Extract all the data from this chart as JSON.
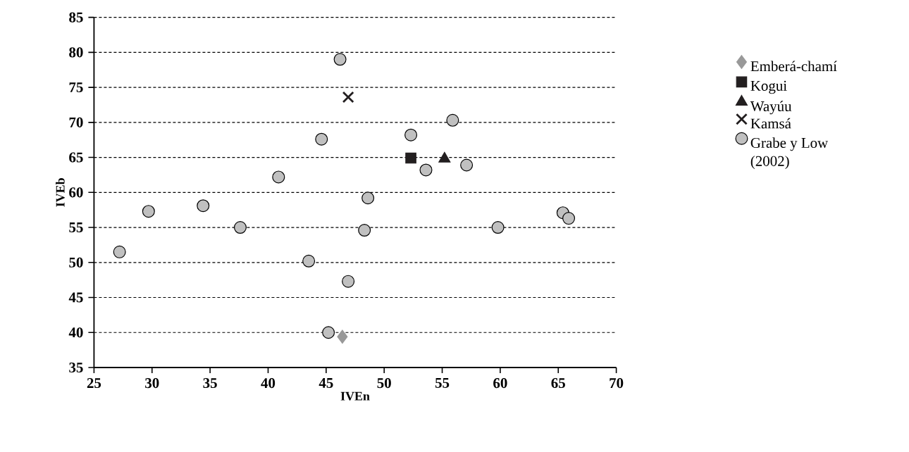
{
  "chart_data": {
    "type": "scatter",
    "xlabel": "IVEn",
    "ylabel": "IVEb",
    "xlim": [
      25,
      70
    ],
    "xticks": [
      25,
      30,
      35,
      40,
      45,
      50,
      55,
      60,
      65,
      70
    ],
    "ylim": [
      35,
      85
    ],
    "yticks": [
      35,
      40,
      45,
      50,
      55,
      60,
      65,
      70,
      75,
      80,
      85
    ],
    "grid": "y",
    "legend": "right",
    "series": [
      {
        "name": "Emberá-chamí",
        "color": "#999999",
        "marker": "diamond",
        "x": [
          46.4
        ],
        "values": [
          39.4
        ]
      },
      {
        "name": "Kogui",
        "color": "#231f20",
        "marker": "square",
        "x": [
          52.3
        ],
        "values": [
          64.9
        ]
      },
      {
        "name": "Wayúu",
        "color": "#231f20",
        "marker": "triangle",
        "x": [
          55.2
        ],
        "values": [
          64.8
        ]
      },
      {
        "name": "Kamsá",
        "color": "#231f20",
        "marker": "cross",
        "x": [
          46.9
        ],
        "values": [
          73.6
        ]
      },
      {
        "name": "Grabe y Low (2002)",
        "color": "#c0c0c0",
        "marker": "circle",
        "x": [
          27.2,
          29.7,
          34.4,
          37.6,
          40.9,
          43.5,
          44.6,
          46.2,
          45.2,
          46.9,
          48.6,
          48.3,
          52.3,
          53.6,
          55.9,
          57.1,
          59.8,
          65.4,
          65.9
        ],
        "values": [
          51.5,
          57.3,
          58.1,
          55.0,
          62.2,
          50.2,
          67.6,
          79.0,
          40.0,
          47.3,
          59.2,
          54.6,
          68.2,
          63.2,
          70.3,
          63.9,
          55.0,
          57.1,
          56.3
        ]
      }
    ]
  }
}
